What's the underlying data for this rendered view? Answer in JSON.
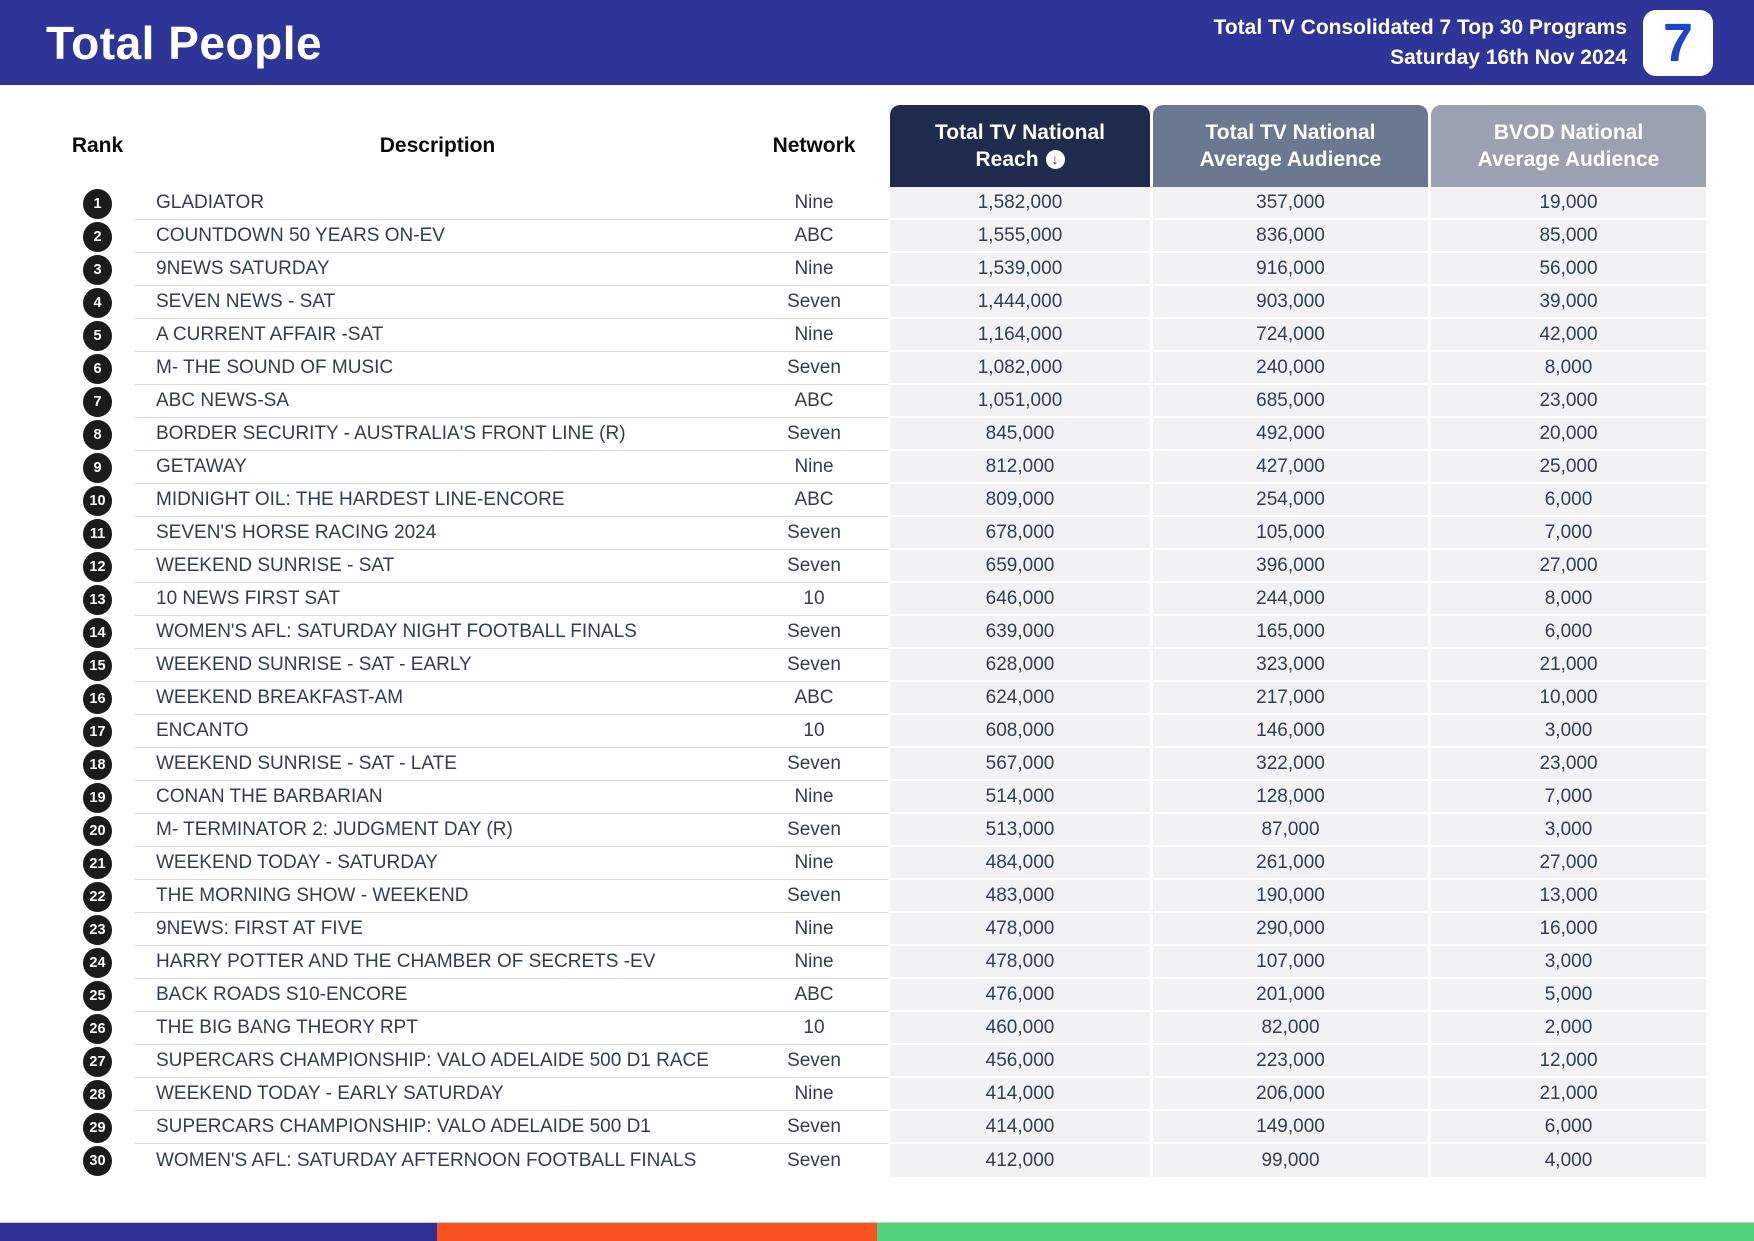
{
  "header": {
    "title": "Total People",
    "subtitle_line1": "Total TV Consolidated 7 Top 30 Programs",
    "subtitle_line2": "Saturday 16th Nov 2024",
    "logo_glyph": "7"
  },
  "colors": {
    "topbar_bg": "#2f3499",
    "reach_header_bg": "#1f2c4e",
    "avg_header_bg": "#6b7990",
    "bvod_header_bg": "#9aa2b1",
    "footer_blue": "#2e3192",
    "footer_orange": "#f95322",
    "footer_green": "#52d17d"
  },
  "table": {
    "columns": {
      "rank": "Rank",
      "description": "Description",
      "network": "Network",
      "reach_line1": "Total TV National",
      "reach_line2": "Reach",
      "avg_line1": "Total TV National",
      "avg_line2": "Average Audience",
      "bvod_line1": "BVOD National",
      "bvod_line2": "Average Audience"
    },
    "sort_icon_glyph": "↓",
    "rows": [
      {
        "rank": "1",
        "description": "GLADIATOR",
        "network": "Nine",
        "reach": "1,582,000",
        "avg": "357,000",
        "bvod": "19,000"
      },
      {
        "rank": "2",
        "description": "COUNTDOWN 50 YEARS ON-EV",
        "network": "ABC",
        "reach": "1,555,000",
        "avg": "836,000",
        "bvod": "85,000"
      },
      {
        "rank": "3",
        "description": "9NEWS SATURDAY",
        "network": "Nine",
        "reach": "1,539,000",
        "avg": "916,000",
        "bvod": "56,000"
      },
      {
        "rank": "4",
        "description": "SEVEN NEWS - SAT",
        "network": "Seven",
        "reach": "1,444,000",
        "avg": "903,000",
        "bvod": "39,000"
      },
      {
        "rank": "5",
        "description": "A CURRENT AFFAIR -SAT",
        "network": "Nine",
        "reach": "1,164,000",
        "avg": "724,000",
        "bvod": "42,000"
      },
      {
        "rank": "6",
        "description": "M- THE SOUND OF MUSIC",
        "network": "Seven",
        "reach": "1,082,000",
        "avg": "240,000",
        "bvod": "8,000"
      },
      {
        "rank": "7",
        "description": "ABC NEWS-SA",
        "network": "ABC",
        "reach": "1,051,000",
        "avg": "685,000",
        "bvod": "23,000"
      },
      {
        "rank": "8",
        "description": "BORDER SECURITY - AUSTRALIA'S FRONT LINE (R)",
        "network": "Seven",
        "reach": "845,000",
        "avg": "492,000",
        "bvod": "20,000"
      },
      {
        "rank": "9",
        "description": "GETAWAY",
        "network": "Nine",
        "reach": "812,000",
        "avg": "427,000",
        "bvod": "25,000"
      },
      {
        "rank": "10",
        "description": "MIDNIGHT OIL: THE HARDEST LINE-ENCORE",
        "network": "ABC",
        "reach": "809,000",
        "avg": "254,000",
        "bvod": "6,000"
      },
      {
        "rank": "11",
        "description": "SEVEN'S HORSE RACING 2024",
        "network": "Seven",
        "reach": "678,000",
        "avg": "105,000",
        "bvod": "7,000"
      },
      {
        "rank": "12",
        "description": "WEEKEND SUNRISE - SAT",
        "network": "Seven",
        "reach": "659,000",
        "avg": "396,000",
        "bvod": "27,000"
      },
      {
        "rank": "13",
        "description": "10 NEWS FIRST SAT",
        "network": "10",
        "reach": "646,000",
        "avg": "244,000",
        "bvod": "8,000"
      },
      {
        "rank": "14",
        "description": "WOMEN'S AFL: SATURDAY NIGHT FOOTBALL FINALS",
        "network": "Seven",
        "reach": "639,000",
        "avg": "165,000",
        "bvod": "6,000"
      },
      {
        "rank": "15",
        "description": "WEEKEND SUNRISE - SAT - EARLY",
        "network": "Seven",
        "reach": "628,000",
        "avg": "323,000",
        "bvod": "21,000"
      },
      {
        "rank": "16",
        "description": "WEEKEND BREAKFAST-AM",
        "network": "ABC",
        "reach": "624,000",
        "avg": "217,000",
        "bvod": "10,000"
      },
      {
        "rank": "17",
        "description": "ENCANTO",
        "network": "10",
        "reach": "608,000",
        "avg": "146,000",
        "bvod": "3,000"
      },
      {
        "rank": "18",
        "description": "WEEKEND SUNRISE - SAT - LATE",
        "network": "Seven",
        "reach": "567,000",
        "avg": "322,000",
        "bvod": "23,000"
      },
      {
        "rank": "19",
        "description": "CONAN THE BARBARIAN",
        "network": "Nine",
        "reach": "514,000",
        "avg": "128,000",
        "bvod": "7,000"
      },
      {
        "rank": "20",
        "description": "M- TERMINATOR 2: JUDGMENT DAY (R)",
        "network": "Seven",
        "reach": "513,000",
        "avg": "87,000",
        "bvod": "3,000"
      },
      {
        "rank": "21",
        "description": "WEEKEND TODAY - SATURDAY",
        "network": "Nine",
        "reach": "484,000",
        "avg": "261,000",
        "bvod": "27,000"
      },
      {
        "rank": "22",
        "description": "THE MORNING SHOW - WEEKEND",
        "network": "Seven",
        "reach": "483,000",
        "avg": "190,000",
        "bvod": "13,000"
      },
      {
        "rank": "23",
        "description": "9NEWS: FIRST AT FIVE",
        "network": "Nine",
        "reach": "478,000",
        "avg": "290,000",
        "bvod": "16,000"
      },
      {
        "rank": "24",
        "description": "HARRY POTTER AND THE CHAMBER OF SECRETS -EV",
        "network": "Nine",
        "reach": "478,000",
        "avg": "107,000",
        "bvod": "3,000"
      },
      {
        "rank": "25",
        "description": "BACK ROADS S10-ENCORE",
        "network": "ABC",
        "reach": "476,000",
        "avg": "201,000",
        "bvod": "5,000"
      },
      {
        "rank": "26",
        "description": "THE BIG BANG THEORY RPT",
        "network": "10",
        "reach": "460,000",
        "avg": "82,000",
        "bvod": "2,000"
      },
      {
        "rank": "27",
        "description": "SUPERCARS CHAMPIONSHIP: VALO ADELAIDE 500 D1 RACE",
        "network": "Seven",
        "reach": "456,000",
        "avg": "223,000",
        "bvod": "12,000"
      },
      {
        "rank": "28",
        "description": "WEEKEND TODAY - EARLY SATURDAY",
        "network": "Nine",
        "reach": "414,000",
        "avg": "206,000",
        "bvod": "21,000"
      },
      {
        "rank": "29",
        "description": "SUPERCARS CHAMPIONSHIP: VALO ADELAIDE 500 D1",
        "network": "Seven",
        "reach": "414,000",
        "avg": "149,000",
        "bvod": "6,000"
      },
      {
        "rank": "30",
        "description": "WOMEN'S AFL: SATURDAY AFTERNOON FOOTBALL FINALS",
        "network": "Seven",
        "reach": "412,000",
        "avg": "99,000",
        "bvod": "4,000"
      }
    ]
  }
}
